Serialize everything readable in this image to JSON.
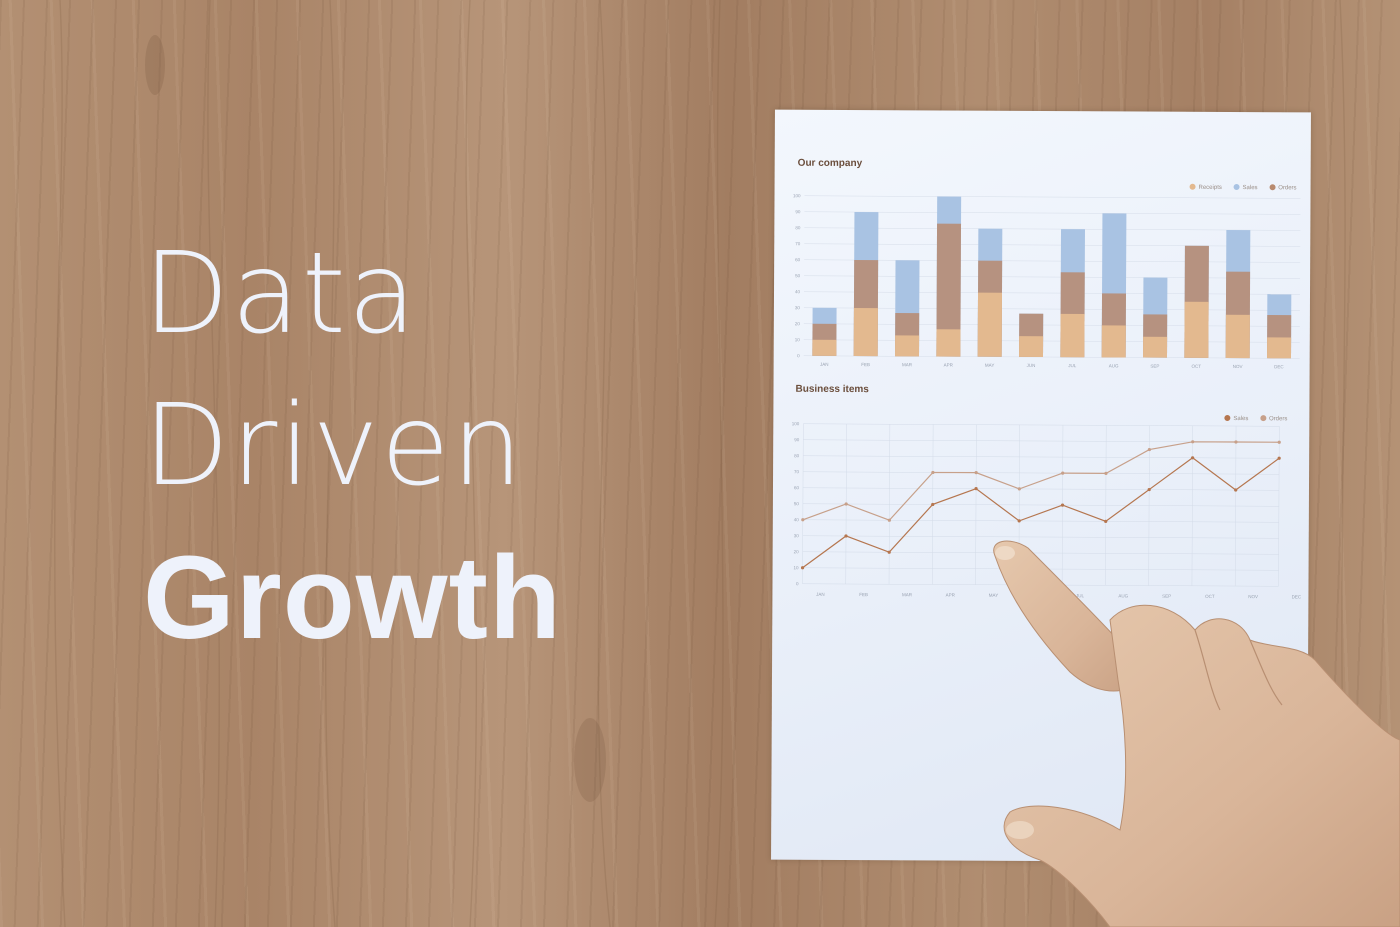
{
  "headline": {
    "line1": "Data",
    "line2": "Driven",
    "line3": "Growth"
  },
  "colors": {
    "headline_text": "#eef2fb",
    "receipts": "#e3b98f",
    "sales_bar": "#a9c3e3",
    "orders_bar": "#b88a6e",
    "sales_line": "#b5764f",
    "orders_line": "#c7a08a",
    "paper": "#eef3fb"
  },
  "chart_data": [
    {
      "type": "bar",
      "title": "Our company",
      "categories": [
        "JAN",
        "FEB",
        "MAR",
        "APR",
        "MAY",
        "JUN",
        "JUL",
        "AUG",
        "SEP",
        "OCT",
        "NOV",
        "DEC"
      ],
      "ylim": [
        0,
        100
      ],
      "yticks": [
        0,
        10,
        20,
        30,
        40,
        50,
        60,
        70,
        80,
        90,
        100
      ],
      "legend_placement": "top-right",
      "stacked": false,
      "series": [
        {
          "name": "Receipts",
          "values": [
            10,
            30,
            13,
            17,
            40,
            13,
            27,
            20,
            13,
            35,
            27,
            13
          ]
        },
        {
          "name": "Sales",
          "values": [
            30,
            90,
            60,
            100,
            80,
            27,
            80,
            90,
            50,
            70,
            80,
            40
          ]
        },
        {
          "name": "Orders",
          "values": [
            20,
            60,
            27,
            83,
            60,
            27,
            53,
            40,
            27,
            70,
            54,
            27
          ]
        }
      ]
    },
    {
      "type": "line",
      "title": "Business items",
      "categories": [
        "JAN",
        "FEB",
        "MAR",
        "APR",
        "MAY",
        "JUN",
        "JUL",
        "AUG",
        "SEP",
        "OCT",
        "NOV",
        "DEC"
      ],
      "ylim": [
        0,
        100
      ],
      "yticks": [
        0,
        10,
        20,
        30,
        40,
        50,
        60,
        70,
        80,
        90,
        100
      ],
      "grid": true,
      "legend_placement": "top-right",
      "series": [
        {
          "name": "Sales",
          "values": [
            10,
            30,
            20,
            50,
            60,
            40,
            50,
            40,
            60,
            80,
            60,
            80
          ]
        },
        {
          "name": "Orders",
          "values": [
            40,
            50,
            40,
            70,
            70,
            60,
            70,
            70,
            85,
            90,
            90,
            90
          ]
        }
      ]
    }
  ]
}
